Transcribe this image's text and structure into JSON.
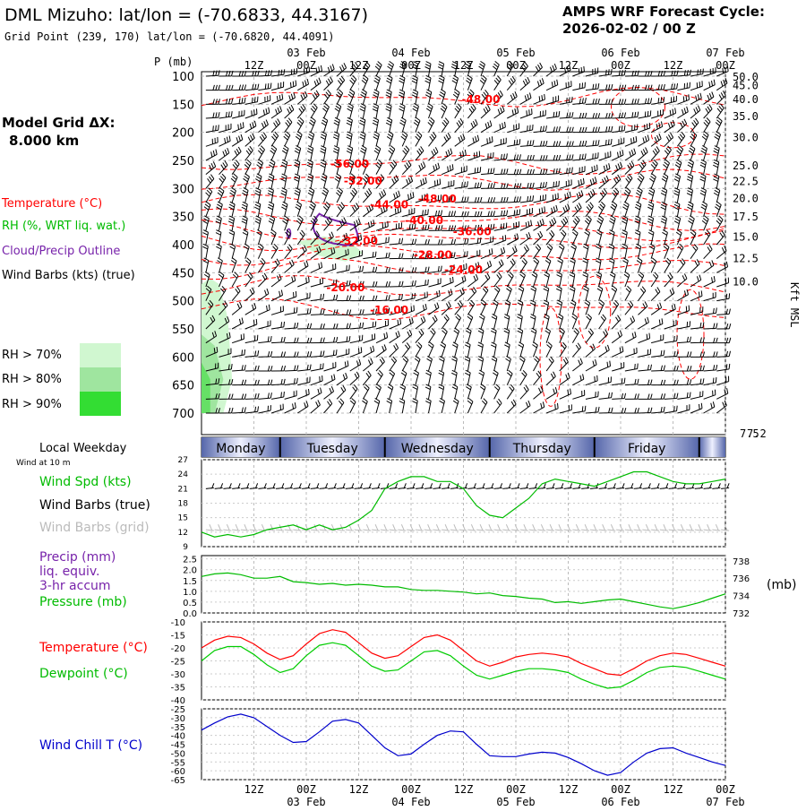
{
  "header": {
    "title": "DML Mizuho:  lat/lon = (-70.6833, 44.3167)",
    "subtitle": "Grid Point (239, 170) lat/lon = (-70.6820, 44.4091)",
    "cycle_line1": "AMPS WRF Forecast Cycle:",
    "cycle_line2": "2026-02-02 / 00  Z"
  },
  "grid_info": {
    "label": "Model Grid ΔX:",
    "value": "8.000 km"
  },
  "colors": {
    "temperature": "#ff0000",
    "rh": "#00bb00",
    "cloud": "#7722aa",
    "wind": "#000000",
    "grid_barbs": "#bbbbbb",
    "pressure": "#00bb00",
    "dewpoint": "#00cc00",
    "windchill": "#0000cc",
    "rh70": "#d0f7d0",
    "rh80": "#9fe59f",
    "rh90": "#33dd33"
  },
  "left_legend": {
    "temperature": "Temperature (°C)",
    "rh": "RH (%, WRT liq. wat.)",
    "cloud": "Cloud/Precip Outline",
    "wind": "Wind Barbs (kts) (true)",
    "rh_levels": [
      "RH > 70%",
      "RH > 80%",
      "RH > 90%"
    ]
  },
  "time_axis": {
    "top_dates": [
      "03 Feb",
      "04 Feb",
      "05 Feb",
      "06 Feb",
      "07 Feb"
    ],
    "bottom_dates": [
      "03 Feb",
      "04 Feb",
      "05 Feb",
      "06 Feb",
      "07 Feb"
    ],
    "hour_labels": [
      "12Z",
      "00Z",
      "12Z",
      "00Z",
      "12Z",
      "00Z",
      "12Z",
      "00Z",
      "12Z",
      "00Z"
    ],
    "forecast_hours": [
      12,
      24,
      36,
      48,
      60,
      72,
      84,
      96,
      108,
      120
    ],
    "range_hours": [
      0,
      120
    ]
  },
  "weekday_bar": {
    "title": "Local Weekday",
    "days": [
      "Monday",
      "Tuesday",
      "Wednesday",
      "Thursday",
      "Friday"
    ],
    "boundaries_hours": [
      0,
      18,
      42,
      66,
      90,
      114,
      120
    ]
  },
  "chart_data": [
    {
      "type": "contour",
      "name": "cross-section",
      "ylabel": "P (mb)",
      "yticks_p": [
        100,
        150,
        200,
        250,
        300,
        350,
        400,
        450,
        500,
        550,
        600,
        650,
        700
      ],
      "right_axis_label": "Kft MSL",
      "right_ticks": [
        {
          "label": "50.0",
          "p": 100
        },
        {
          "label": "45.0",
          "p": 115
        },
        {
          "label": "40.0",
          "p": 140
        },
        {
          "label": "35.0",
          "p": 170
        },
        {
          "label": "30.0",
          "p": 208
        },
        {
          "label": "25.0",
          "p": 258
        },
        {
          "label": "22.5",
          "p": 286
        },
        {
          "label": "20.0",
          "p": 316
        },
        {
          "label": "17.5",
          "p": 349
        },
        {
          "label": "15.0",
          "p": 385
        },
        {
          "label": "12.5",
          "p": 423
        },
        {
          "label": "10.0",
          "p": 465
        }
      ],
      "bottom_right_labels": [
        "7.5",
        "7.2"
      ],
      "temperature_labels": [
        {
          "label": "-48.00",
          "t": 64,
          "p": 140
        },
        {
          "label": "-56.00",
          "t": 34,
          "p": 255
        },
        {
          "label": "-52.00",
          "t": 37,
          "p": 285
        },
        {
          "label": "-48.00",
          "t": 54,
          "p": 317
        },
        {
          "label": "-44.00",
          "t": 43,
          "p": 327
        },
        {
          "label": "-40.00",
          "t": 51,
          "p": 355
        },
        {
          "label": "-36.00",
          "t": 62,
          "p": 375
        },
        {
          "label": "-32.00",
          "t": 36,
          "p": 392
        },
        {
          "label": "-28.00",
          "t": 53,
          "p": 417
        },
        {
          "label": "-24.00",
          "t": 60,
          "p": 443
        },
        {
          "label": "-20.00",
          "t": 33,
          "p": 475
        },
        {
          "label": "-16.00",
          "t": 43,
          "p": 515
        }
      ]
    },
    {
      "type": "line",
      "name": "wind-speed",
      "title": "Wind at 10 m",
      "ylabel": "Wind Spd (kts)",
      "barbs_true_label": "Wind Barbs (true)",
      "barbs_grid_label": "Wind Barbs (grid)",
      "yticks": [
        9,
        12,
        15,
        18,
        21,
        24,
        27
      ],
      "ylim": [
        9,
        27
      ],
      "x": [
        0,
        3,
        6,
        9,
        12,
        15,
        18,
        21,
        24,
        27,
        30,
        33,
        36,
        39,
        42,
        45,
        48,
        51,
        54,
        57,
        60,
        63,
        66,
        69,
        72,
        75,
        78,
        81,
        84,
        87,
        90,
        93,
        96,
        99,
        102,
        105,
        108,
        111,
        114,
        117,
        120
      ],
      "values": [
        12,
        11,
        11.5,
        11,
        11.5,
        12.5,
        13,
        13.5,
        12.5,
        13.5,
        12.5,
        13,
        14.5,
        16.5,
        21,
        22.5,
        23.5,
        23.5,
        22.5,
        22.5,
        21,
        17.5,
        15.5,
        15,
        17,
        19,
        22,
        23,
        22.5,
        22,
        21.5,
        22.5,
        23.5,
        24.5,
        24.5,
        23.5,
        22.5,
        22,
        22,
        22.5,
        23
      ]
    },
    {
      "type": "line",
      "name": "pressure-precip",
      "ylabel_left": "Precip (mm) liq. equiv. 3-hr accum",
      "ylabel_right": "Pressure (mb)",
      "right_unit": "(mb)",
      "precip_ticks": [
        "0.0",
        "0.5",
        "1.0",
        "1.5",
        "2.0",
        "2.5"
      ],
      "pressure_ticks": [
        732,
        734,
        736,
        738
      ],
      "ylim_pressure": [
        732,
        738.6
      ],
      "x": [
        0,
        3,
        6,
        9,
        12,
        15,
        18,
        21,
        24,
        27,
        30,
        33,
        36,
        39,
        42,
        45,
        48,
        51,
        54,
        57,
        60,
        63,
        66,
        69,
        72,
        75,
        78,
        81,
        84,
        87,
        90,
        93,
        96,
        99,
        102,
        105,
        108,
        111,
        114,
        117,
        120
      ],
      "values": [
        736.2,
        736.5,
        736.6,
        736.4,
        736.0,
        736.0,
        736.2,
        735.6,
        735.5,
        735.3,
        735.4,
        735.2,
        735.3,
        735.2,
        735.0,
        735.0,
        734.7,
        734.6,
        734.6,
        734.5,
        734.4,
        734.2,
        734.3,
        734.0,
        733.9,
        733.7,
        733.6,
        733.2,
        733.3,
        733.1,
        733.3,
        733.5,
        733.6,
        733.3,
        733.0,
        732.7,
        732.5,
        732.8,
        733.2,
        733.7,
        734.2
      ]
    },
    {
      "type": "line",
      "name": "temperature-dewpoint",
      "yticks": [
        -10,
        -15,
        -20,
        -25,
        -30,
        -35,
        -40
      ],
      "ylim": [
        -40,
        -10
      ],
      "x": [
        0,
        3,
        6,
        9,
        12,
        15,
        18,
        21,
        24,
        27,
        30,
        33,
        36,
        39,
        42,
        45,
        48,
        51,
        54,
        57,
        60,
        63,
        66,
        69,
        72,
        75,
        78,
        81,
        84,
        87,
        90,
        93,
        96,
        99,
        102,
        105,
        108,
        111,
        114,
        117,
        120
      ],
      "series": [
        {
          "name": "Temperature (°C)",
          "values": [
            -20,
            -17,
            -15.5,
            -16,
            -18.5,
            -22,
            -24.5,
            -23,
            -18.5,
            -14.5,
            -13,
            -14,
            -18,
            -22,
            -24,
            -23,
            -19.5,
            -16,
            -15,
            -17,
            -21,
            -25,
            -27,
            -25.5,
            -23.5,
            -22.5,
            -22,
            -22.5,
            -23.5,
            -26,
            -28,
            -30,
            -30.5,
            -28,
            -25,
            -23,
            -22,
            -22.5,
            -24,
            -25.5,
            -27
          ]
        },
        {
          "name": "Dewpoint (°C)",
          "values": [
            -25,
            -21,
            -19.5,
            -19.5,
            -22.5,
            -26.5,
            -29.5,
            -28,
            -23,
            -19,
            -18,
            -19,
            -23,
            -27,
            -29,
            -28.5,
            -25,
            -21.5,
            -21,
            -23,
            -27,
            -30.5,
            -32,
            -30.5,
            -29,
            -28,
            -28,
            -28.5,
            -29.5,
            -32,
            -34,
            -35.5,
            -35,
            -32.5,
            -29.5,
            -27.5,
            -27,
            -27.5,
            -29,
            -30.5,
            -32
          ]
        }
      ]
    },
    {
      "type": "line",
      "name": "wind-chill",
      "ylabel": "Wind Chill T (°C)",
      "yticks": [
        -25,
        -30,
        -35,
        -40,
        -45,
        -50,
        -55,
        -60,
        -65
      ],
      "ylim": [
        -65,
        -25
      ],
      "x": [
        0,
        3,
        6,
        9,
        12,
        15,
        18,
        21,
        24,
        27,
        30,
        33,
        36,
        39,
        42,
        45,
        48,
        51,
        54,
        57,
        60,
        63,
        66,
        69,
        72,
        75,
        78,
        81,
        84,
        87,
        90,
        93,
        96,
        99,
        102,
        105,
        108,
        111,
        114,
        117,
        120
      ],
      "values": [
        -37,
        -33,
        -29.5,
        -28,
        -30,
        -35,
        -40,
        -44,
        -43.5,
        -38,
        -32,
        -31,
        -33,
        -40,
        -47,
        -51.5,
        -50.5,
        -45,
        -40,
        -37.5,
        -38,
        -45,
        -51.5,
        -52,
        -52,
        -50.5,
        -49.5,
        -50,
        -52.5,
        -56,
        -60,
        -62.5,
        -61,
        -55,
        -50,
        -47.5,
        -47,
        -50,
        -52.5,
        -55,
        -57
      ]
    }
  ]
}
